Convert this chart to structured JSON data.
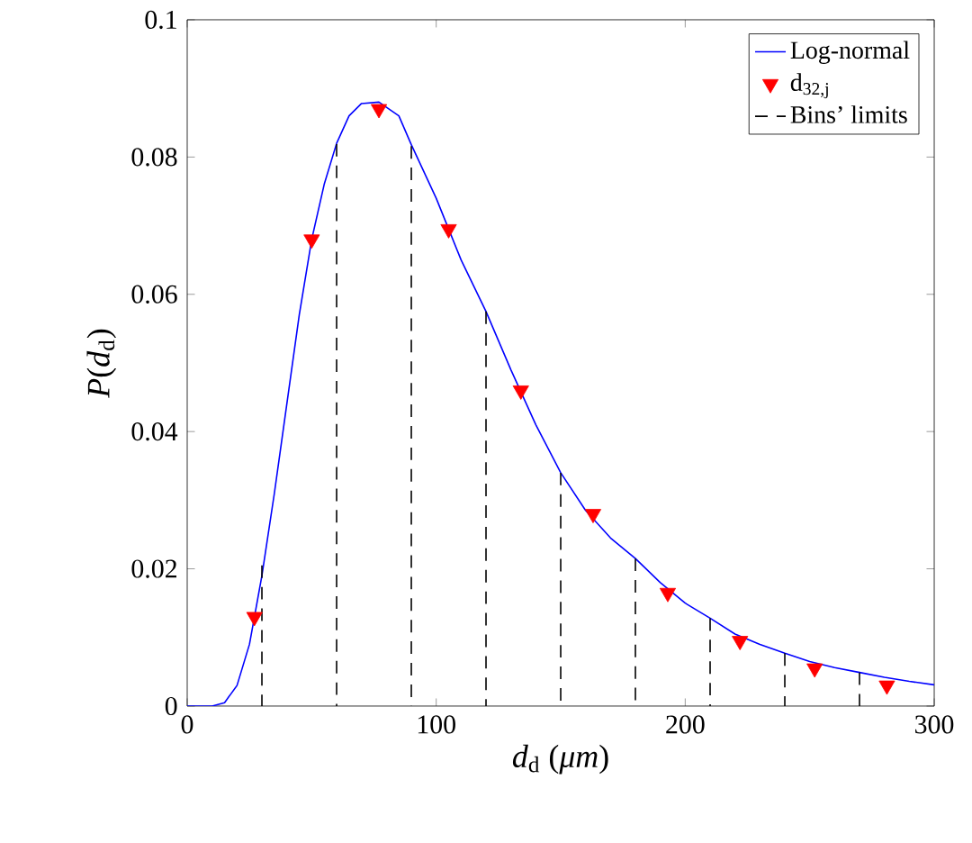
{
  "chart_data": {
    "type": "line",
    "xlabel": "*d*$_{d}$ (*μm*)",
    "ylabel": "*P*(*d*$_{d}$)",
    "xlim": [
      0,
      300
    ],
    "ylim": [
      0,
      0.1
    ],
    "xticks": [
      0,
      100,
      200,
      300
    ],
    "yticks": [
      0,
      0.02,
      0.04,
      0.06,
      0.08,
      0.1
    ],
    "legend": "top right",
    "grid": false,
    "series": [
      {
        "name": "Log-normal",
        "type": "line",
        "color": "#0000ff",
        "line_style": "solid",
        "marker": "none",
        "x": [
          0,
          10,
          15,
          20,
          25,
          30,
          35,
          40,
          45,
          50,
          55,
          60,
          65,
          70,
          77,
          85,
          90,
          100,
          105,
          110,
          120,
          130,
          140,
          150,
          160,
          170,
          180,
          190,
          200,
          210,
          220,
          230,
          240,
          250,
          260,
          270,
          280,
          290,
          300
        ],
        "values": [
          0,
          0,
          0.0005,
          0.003,
          0.009,
          0.019,
          0.031,
          0.044,
          0.057,
          0.068,
          0.076,
          0.082,
          0.086,
          0.0878,
          0.088,
          0.086,
          0.0818,
          0.074,
          0.0695,
          0.065,
          0.0575,
          0.049,
          0.041,
          0.034,
          0.0285,
          0.0245,
          0.0215,
          0.018,
          0.015,
          0.0128,
          0.0105,
          0.009,
          0.0077,
          0.0065,
          0.0056,
          0.0049,
          0.0042,
          0.0036,
          0.0031
        ]
      },
      {
        "name": "d$_{32,j}$",
        "type": "scatter",
        "color": "#ff0000",
        "marker": "triangle",
        "x": [
          27,
          50,
          77,
          105,
          134,
          163,
          193,
          222,
          252,
          281
        ],
        "values": [
          0.013,
          0.068,
          0.087,
          0.0695,
          0.046,
          0.028,
          0.0165,
          0.0095,
          0.0055,
          0.003
        ]
      },
      {
        "name": "Bins’ limits",
        "color": "#000000",
        "line_style": "dashed",
        "marker": "none",
        "x": [
          30,
          30
        ],
        "values": [
          0.0205,
          0
        ]
      },
      {
        "color": "#000000",
        "line_style": "dashed",
        "marker": "none",
        "x": [
          60,
          60
        ],
        "values": [
          0.0819,
          0
        ]
      },
      {
        "color": "#000000",
        "line_style": "dashed",
        "marker": "none",
        "x": [
          90,
          90
        ],
        "values": [
          0.0816,
          0
        ]
      },
      {
        "color": "#000000",
        "line_style": "dashed",
        "marker": "none",
        "x": [
          120,
          120
        ],
        "values": [
          0.0575,
          0
        ]
      },
      {
        "color": "#000000",
        "line_style": "dashed",
        "marker": "none",
        "x": [
          150,
          150
        ],
        "values": [
          0.034,
          0
        ]
      },
      {
        "color": "#000000",
        "line_style": "dashed",
        "marker": "none",
        "x": [
          180,
          180
        ],
        "values": [
          0.0215,
          0
        ]
      },
      {
        "color": "#000000",
        "line_style": "dashed",
        "marker": "none",
        "x": [
          210,
          210
        ],
        "values": [
          0.0128,
          0
        ]
      },
      {
        "color": "#000000",
        "line_style": "dashed",
        "marker": "none",
        "x": [
          240,
          240
        ],
        "values": [
          0.0077,
          0
        ]
      },
      {
        "color": "#000000",
        "line_style": "dashed",
        "marker": "none",
        "x": [
          270,
          270
        ],
        "values": [
          0.0049,
          0
        ]
      }
    ]
  }
}
